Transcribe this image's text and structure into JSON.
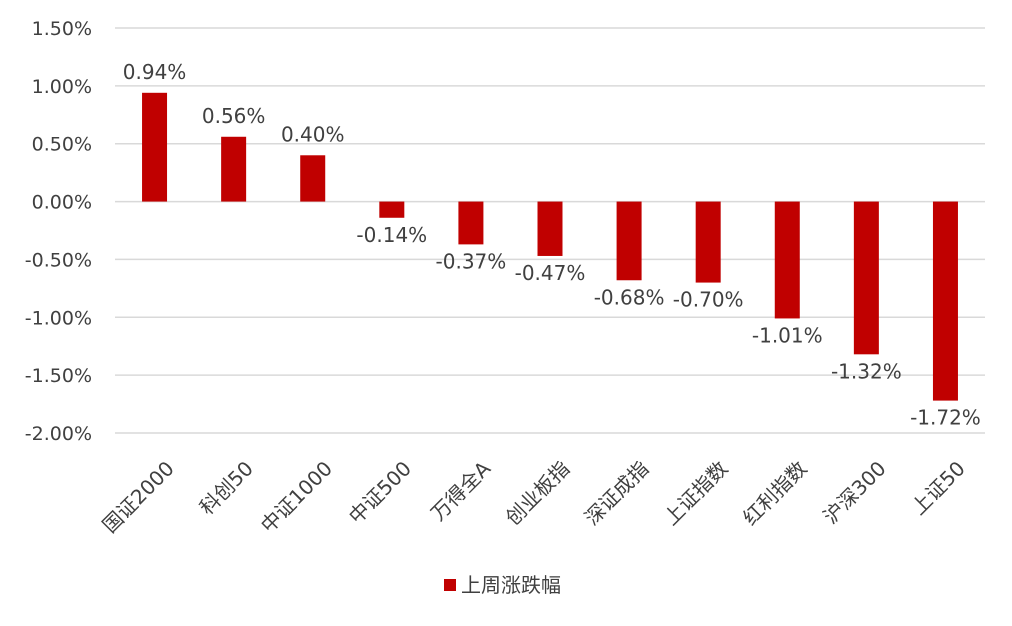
{
  "chart_data": {
    "type": "bar",
    "title": "",
    "xlabel": "",
    "ylabel": "",
    "categories": [
      "国证2000",
      "科创50",
      "中证1000",
      "中证500",
      "万得全A",
      "创业板指",
      "深证成指",
      "上证指数",
      "红利指数",
      "沪深300",
      "上证50"
    ],
    "series": [
      {
        "name": "上周涨跌幅",
        "color": "#C00000",
        "values": [
          0.94,
          0.56,
          0.4,
          -0.14,
          -0.37,
          -0.47,
          -0.68,
          -0.7,
          -1.01,
          -1.32,
          -1.72
        ],
        "labels": [
          "0.94%",
          "0.56%",
          "0.40%",
          "-0.14%",
          "-0.37%",
          "-0.47%",
          "-0.68%",
          "-0.70%",
          "-1.01%",
          "-1.32%",
          "-1.72%"
        ]
      }
    ],
    "ylim": [
      -2.0,
      1.5
    ],
    "yticks": [
      1.5,
      1.0,
      0.5,
      0.0,
      -0.5,
      -1.0,
      -1.5,
      -2.0
    ],
    "ytick_labels": [
      "1.50%",
      "1.00%",
      "0.50%",
      "0.00%",
      "-0.50%",
      "-1.00%",
      "-1.50%",
      "-2.00%"
    ],
    "grid": true,
    "legend_position": "bottom",
    "colors": {
      "bar": "#C00000",
      "grid": "#D9D9D9",
      "text": "#404040"
    }
  }
}
